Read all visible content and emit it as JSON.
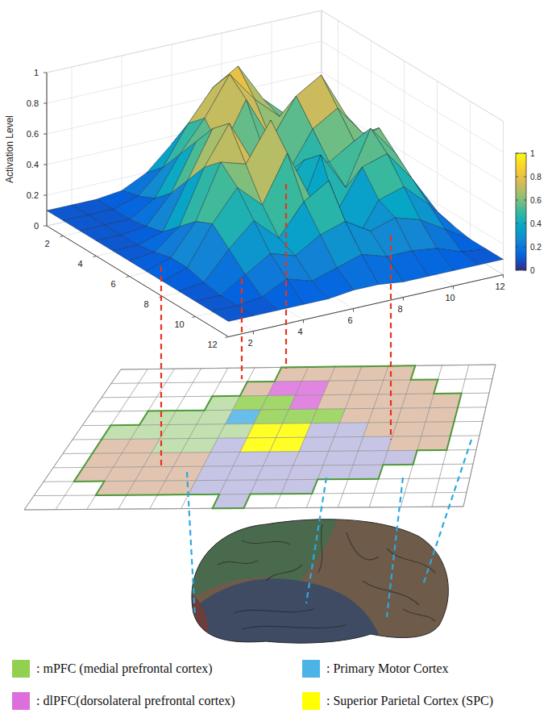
{
  "chart_data": {
    "type": "surface",
    "z_label": "Activation Level",
    "x": [
      1,
      2,
      3,
      4,
      5,
      6,
      7,
      8,
      9,
      10,
      11,
      12
    ],
    "y": [
      1,
      2,
      3,
      4,
      5,
      6,
      7,
      8,
      9,
      10,
      11,
      12
    ],
    "xlim": [
      1,
      12
    ],
    "xticks": [
      2,
      4,
      6,
      8,
      10,
      12
    ],
    "ylim": [
      1,
      12
    ],
    "yticks": [
      2,
      4,
      6,
      8,
      10,
      12
    ],
    "zlim": [
      0,
      1
    ],
    "zticks": [
      0,
      0.2,
      0.4,
      0.6,
      0.8,
      1
    ],
    "grid": true,
    "values": [
      [
        0.1,
        0.1,
        0.1,
        0.12,
        0.2,
        0.35,
        0.5,
        0.6,
        0.45,
        0.3,
        0.2,
        0.12
      ],
      [
        0.1,
        0.1,
        0.1,
        0.15,
        0.3,
        0.55,
        0.75,
        0.85,
        0.6,
        0.45,
        0.3,
        0.15
      ],
      [
        0.1,
        0.1,
        0.1,
        0.2,
        0.45,
        0.65,
        0.9,
        0.7,
        0.55,
        0.65,
        0.4,
        0.2
      ],
      [
        0.1,
        0.1,
        0.12,
        0.3,
        0.6,
        0.5,
        0.8,
        0.5,
        0.75,
        0.85,
        0.55,
        0.2
      ],
      [
        0.1,
        0.1,
        0.15,
        0.45,
        0.75,
        0.4,
        0.55,
        0.35,
        0.6,
        0.7,
        0.5,
        0.2
      ],
      [
        0.1,
        0.12,
        0.25,
        0.6,
        0.85,
        0.55,
        0.3,
        0.5,
        0.45,
        0.55,
        0.6,
        0.25
      ],
      [
        0.1,
        0.15,
        0.35,
        0.7,
        0.65,
        0.9,
        0.2,
        0.6,
        0.35,
        0.7,
        0.5,
        0.2
      ],
      [
        0.1,
        0.15,
        0.4,
        0.6,
        0.45,
        0.75,
        0.4,
        0.3,
        0.55,
        0.6,
        0.4,
        0.15
      ],
      [
        0.1,
        0.12,
        0.3,
        0.45,
        0.3,
        0.5,
        0.6,
        0.15,
        0.4,
        0.45,
        0.3,
        0.12
      ],
      [
        0.1,
        0.1,
        0.2,
        0.3,
        0.25,
        0.35,
        0.4,
        0.3,
        0.35,
        0.3,
        0.2,
        0.1
      ],
      [
        0.1,
        0.1,
        0.12,
        0.2,
        0.15,
        0.2,
        0.25,
        0.2,
        0.2,
        0.18,
        0.12,
        0.1
      ],
      [
        0.1,
        0.1,
        0.1,
        0.1,
        0.1,
        0.12,
        0.12,
        0.1,
        0.1,
        0.1,
        0.1,
        0.1
      ]
    ],
    "colorbar": {
      "range": [
        0,
        1
      ],
      "ticks": [
        0,
        0.2,
        0.4,
        0.6,
        0.8,
        1
      ]
    }
  },
  "region_map": {
    "regions": [
      {
        "label": ": mPFC (medial prefrontal cortex)",
        "color": "#92d050"
      },
      {
        "label": ": dlPFC(dorsolateral prefrontal cortex)",
        "color": "#dd6fdd"
      },
      {
        "label": ": Primary Motor Cortex",
        "color": "#4cb3e6"
      },
      {
        "label": ": Superior Parietal Cortex (SPC)",
        "color": "#ffff00"
      },
      {
        "color": "#dcbba3"
      },
      {
        "color": "#bdbbe2"
      },
      {
        "color": "#b9dca2"
      }
    ],
    "cells": [
      [
        null,
        null,
        null,
        null,
        null,
        null,
        4,
        4,
        4,
        4,
        4,
        null,
        null,
        null
      ],
      [
        null,
        null,
        null,
        null,
        null,
        4,
        1,
        1,
        4,
        4,
        4,
        4,
        null,
        null
      ],
      [
        null,
        null,
        null,
        null,
        6,
        0,
        0,
        1,
        4,
        4,
        4,
        4,
        4,
        null
      ],
      [
        null,
        null,
        6,
        6,
        6,
        2,
        0,
        0,
        0,
        4,
        4,
        4,
        4,
        null
      ],
      [
        null,
        6,
        6,
        6,
        6,
        6,
        3,
        3,
        5,
        5,
        4,
        4,
        4,
        null
      ],
      [
        null,
        4,
        4,
        6,
        6,
        5,
        3,
        3,
        5,
        5,
        5,
        4,
        4,
        null
      ],
      [
        null,
        4,
        4,
        4,
        4,
        5,
        5,
        5,
        5,
        5,
        5,
        5,
        null,
        null
      ],
      [
        null,
        4,
        4,
        4,
        4,
        5,
        5,
        5,
        5,
        5,
        5,
        null,
        null,
        null
      ],
      [
        null,
        null,
        4,
        4,
        4,
        5,
        5,
        5,
        5,
        null,
        null,
        null,
        null,
        null
      ],
      [
        null,
        null,
        null,
        null,
        null,
        null,
        5,
        null,
        null,
        null,
        null,
        null,
        null,
        null
      ]
    ]
  }
}
